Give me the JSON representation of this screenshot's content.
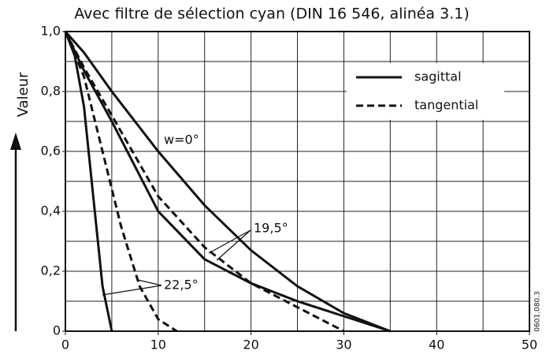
{
  "chart_data": {
    "type": "line",
    "title": "Avec filtre de sélection cyan (DIN 16 546, alinéa 3.1)",
    "ylabel": "Valeur",
    "code": "0601.080.3",
    "xlim": [
      0,
      50
    ],
    "ylim": [
      0,
      1
    ],
    "xticks": [
      0,
      10,
      20,
      30,
      40,
      50
    ],
    "yticks": [
      {
        "value": 0,
        "label": "0"
      },
      {
        "value": 0.2,
        "label": "0,2"
      },
      {
        "value": 0.4,
        "label": "0,4"
      },
      {
        "value": 0.6,
        "label": "0,6"
      },
      {
        "value": 0.8,
        "label": "0,8"
      },
      {
        "value": 1,
        "label": "1,0"
      }
    ],
    "xgrid": [
      0,
      5,
      10,
      15,
      20,
      25,
      30,
      35,
      40,
      45,
      50
    ],
    "ygrid": [
      0,
      0.1,
      0.2,
      0.3,
      0.4,
      0.5,
      0.6,
      0.7,
      0.8,
      0.9,
      1
    ],
    "grid": true,
    "legend": "upper right",
    "color": "#111111",
    "series": [
      {
        "name": "sagittal",
        "dashed": false,
        "x": [
          0,
          2,
          5,
          10,
          15,
          20,
          25,
          30,
          35
        ],
        "values": [
          1,
          0.93,
          0.8,
          0.6,
          0.42,
          0.27,
          0.15,
          0.06,
          0
        ]
      },
      {
        "name": "tangential",
        "dashed": true,
        "x": [
          0,
          2,
          5,
          10,
          15,
          20,
          25,
          30
        ],
        "values": [
          1,
          0.88,
          0.72,
          0.45,
          0.28,
          0.16,
          0.08,
          0
        ]
      },
      {
        "name": "sagittal",
        "dashed": false,
        "x": [
          0,
          2,
          5,
          10,
          15,
          20,
          25,
          30,
          35
        ],
        "values": [
          1,
          0.87,
          0.7,
          0.4,
          0.24,
          0.16,
          0.1,
          0.05,
          0
        ]
      },
      {
        "name": "sagittal",
        "dashed": false,
        "x": [
          0,
          1,
          2,
          3,
          4,
          5
        ],
        "values": [
          1,
          0.92,
          0.75,
          0.45,
          0.15,
          0
        ]
      },
      {
        "name": "tangential",
        "dashed": true,
        "x": [
          0,
          2,
          4,
          6,
          8,
          10,
          12
        ],
        "values": [
          1,
          0.85,
          0.6,
          0.35,
          0.15,
          0.04,
          0
        ]
      }
    ],
    "annotations": [
      "w=0°",
      "19,5°",
      "22,5°"
    ]
  }
}
